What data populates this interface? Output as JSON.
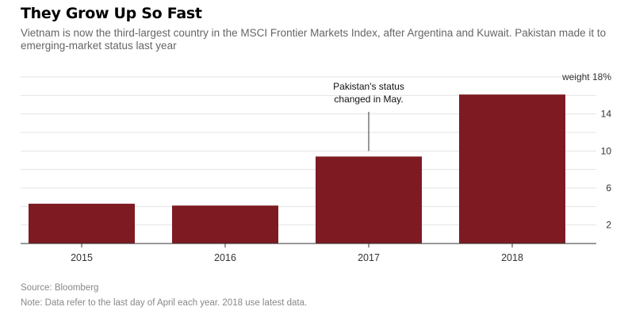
{
  "colors": {
    "bar": "#7d1a22",
    "grid": "#e3e3e3",
    "axis": "#333333",
    "tick_text": "#333333",
    "title": "#000000",
    "subtitle": "#666666",
    "footer": "#888888"
  },
  "header": {
    "title": "They Grow Up So Fast",
    "subtitle": "Vietnam is now the third-largest country in the MSCI Frontier Markets Index, after Argentina and Kuwait. Pakistan made it to emerging-market status last year"
  },
  "footer": {
    "source": "Source: Bloomberg",
    "note": "Note: Data refer to the last day of April each year. 2018 use latest data."
  },
  "chart_data": {
    "type": "bar",
    "title": "They Grow Up So Fast",
    "categories": [
      "2015",
      "2016",
      "2017",
      "2018"
    ],
    "values": [
      4.3,
      4.1,
      9.4,
      16.1
    ],
    "ylabel": "weight",
    "ylim": [
      0,
      18
    ],
    "y_ticks": [
      2,
      6,
      10,
      14,
      18
    ],
    "y_tick_labels": [
      "2",
      "6",
      "10",
      "14",
      "weight 18%"
    ],
    "y_axis_side": "right",
    "grid": true,
    "annotations": [
      {
        "category": "2017",
        "line1": "Pakistan's status",
        "line2": "changed in May."
      }
    ]
  }
}
